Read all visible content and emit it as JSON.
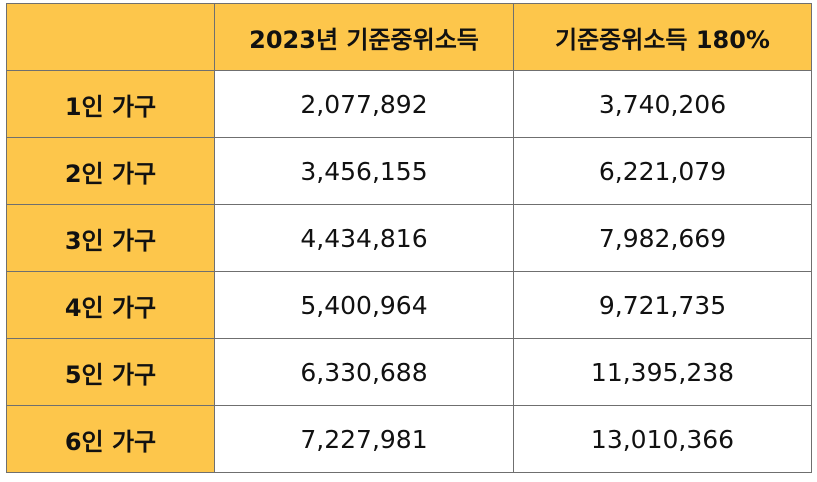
{
  "table": {
    "headers": [
      "",
      "2023년 기준중위소득",
      "기준중위소득 180%"
    ],
    "rows": [
      {
        "label": "1인 가구",
        "median": "2,077,892",
        "median_180": "3,740,206"
      },
      {
        "label": "2인 가구",
        "median": "3,456,155",
        "median_180": "6,221,079"
      },
      {
        "label": "3인 가구",
        "median": "4,434,816",
        "median_180": "7,982,669"
      },
      {
        "label": "4인 가구",
        "median": "5,400,964",
        "median_180": "9,721,735"
      },
      {
        "label": "5인 가구",
        "median": "6,330,688",
        "median_180": "11,395,238"
      },
      {
        "label": "6인 가구",
        "median": "7,227,981",
        "median_180": "13,010,366"
      }
    ]
  },
  "colors": {
    "header_bg": "#fdc64b",
    "border": "#6f6f6f",
    "cell_bg": "#ffffff",
    "text": "#111111"
  }
}
